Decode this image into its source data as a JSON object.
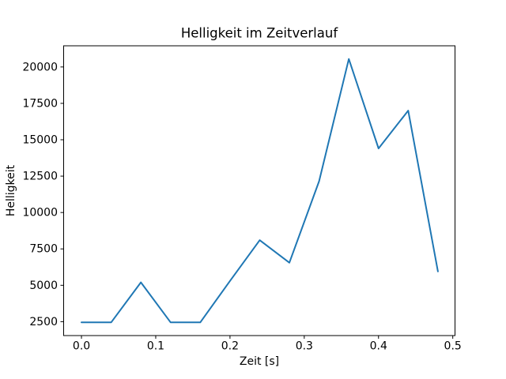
{
  "figure": {
    "background": "#ffffff"
  },
  "chart_data": {
    "type": "line",
    "title": "Helligkeit im Zeitverlauf",
    "xlabel": "Zeit [s]",
    "ylabel": "Helligkeit",
    "x": [
      0.0,
      0.04,
      0.08,
      0.12,
      0.16,
      0.2,
      0.24,
      0.28,
      0.32,
      0.36,
      0.4,
      0.44,
      0.48
    ],
    "y": [
      2450,
      2450,
      5200,
      2450,
      2450,
      5300,
      8100,
      6550,
      12150,
      20550,
      14400,
      17000,
      5950
    ],
    "xticks": [
      0.0,
      0.1,
      0.2,
      0.3,
      0.4,
      0.5
    ],
    "xtick_labels": [
      "0.0",
      "0.1",
      "0.2",
      "0.3",
      "0.4",
      "0.5"
    ],
    "yticks": [
      2500,
      5000,
      7500,
      10000,
      12500,
      15000,
      17500,
      20000
    ],
    "ytick_labels": [
      "2500",
      "5000",
      "7500",
      "10000",
      "12500",
      "15000",
      "17500",
      "20000"
    ],
    "xlim": [
      -0.024,
      0.503
    ],
    "ylim": [
      1545,
      21455
    ],
    "line_color": "#1f77b4",
    "axis_color": "#000000",
    "background": "#ffffff",
    "grid": false,
    "legend": null,
    "markers": false
  }
}
